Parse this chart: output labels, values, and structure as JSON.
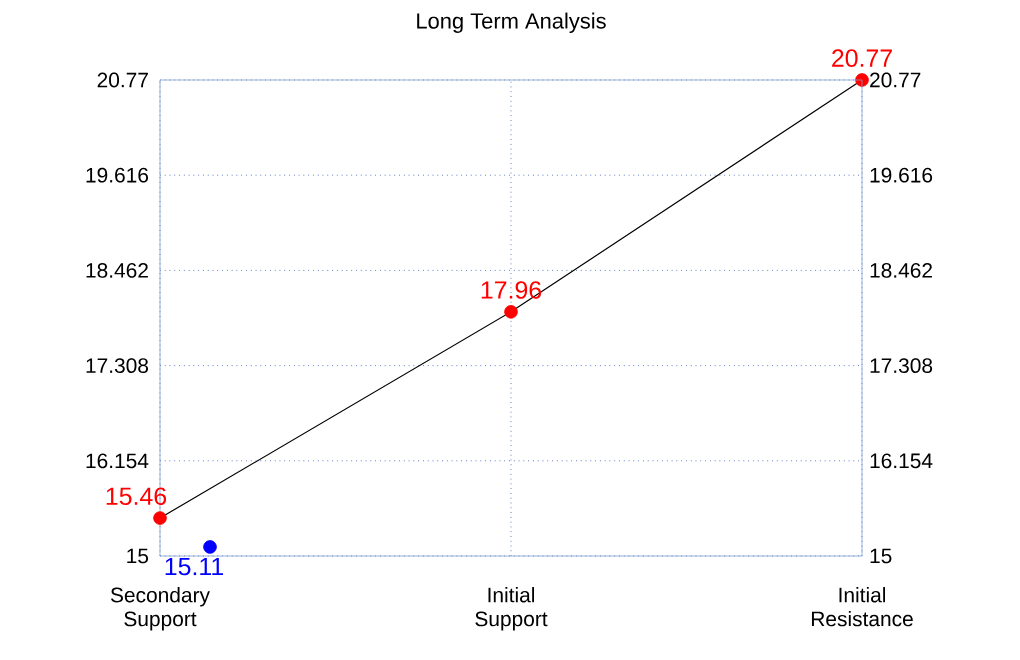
{
  "chart_data": {
    "type": "line",
    "title": "Long Term Analysis",
    "categories": [
      "Secondary\nSupport",
      "Initial\nSupport",
      "Initial\nResistance"
    ],
    "series": [
      {
        "values": [
          15.46,
          17.96,
          20.77
        ],
        "color": "#000000",
        "colors": [
          "#ff0000",
          "#ff0000",
          "#ff0000"
        ],
        "value_labels": [
          "15.46",
          "17.96",
          "20.77"
        ]
      },
      {
        "type": "scatter",
        "values": [
          15.11,
          null,
          null
        ],
        "color": "#0000ff",
        "value_labels": [
          "15.11",
          null,
          null
        ]
      }
    ],
    "ylim": [
      15,
      20.77
    ],
    "yticks": [
      15,
      16.154,
      17.308,
      18.462,
      19.616,
      20.77
    ],
    "y2lim": [
      15,
      20.77
    ],
    "y2ticks": [
      15,
      16.154,
      17.308,
      18.462,
      19.616,
      20.77
    ],
    "grid": true,
    "marker": "circle"
  }
}
